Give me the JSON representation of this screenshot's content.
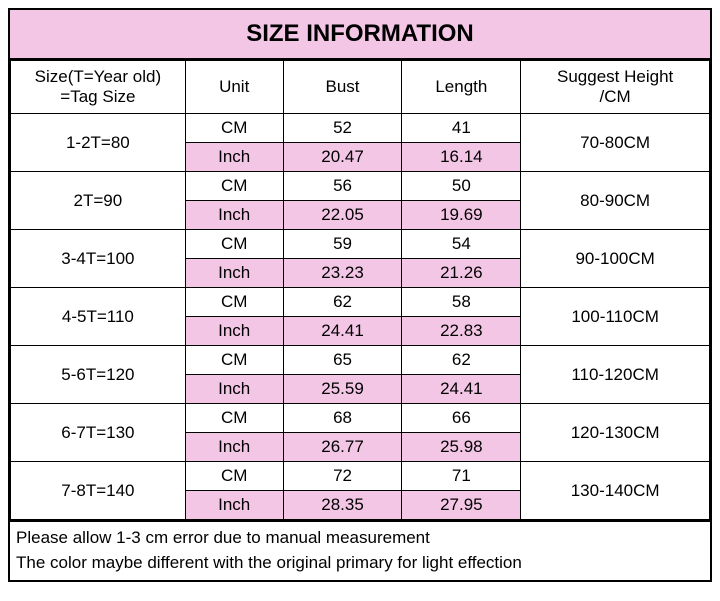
{
  "colors": {
    "title_bg": "#f4c6e6",
    "row_pink": "#f4c6e6",
    "row_white": "#ffffff",
    "border": "#000000"
  },
  "title": {
    "text": "SIZE INFORMATION",
    "fontsize": 24
  },
  "table": {
    "col_widths_pct": [
      25,
      14,
      17,
      17,
      27
    ],
    "headers": {
      "size_line1": "Size(T=Year old)",
      "size_line2": "=Tag Size",
      "unit": "Unit",
      "bust": "Bust",
      "length": "Length",
      "suggest_line1": "Suggest Height",
      "suggest_line2": "/CM"
    },
    "rows": [
      {
        "size": "1-2T=80",
        "cm": {
          "bust": "52",
          "length": "41"
        },
        "inch": {
          "bust": "20.47",
          "length": "16.14"
        },
        "suggest": "70-80CM"
      },
      {
        "size": "2T=90",
        "cm": {
          "bust": "56",
          "length": "50"
        },
        "inch": {
          "bust": "22.05",
          "length": "19.69"
        },
        "suggest": "80-90CM"
      },
      {
        "size": "3-4T=100",
        "cm": {
          "bust": "59",
          "length": "54"
        },
        "inch": {
          "bust": "23.23",
          "length": "21.26"
        },
        "suggest": "90-100CM"
      },
      {
        "size": "4-5T=110",
        "cm": {
          "bust": "62",
          "length": "58"
        },
        "inch": {
          "bust": "24.41",
          "length": "22.83"
        },
        "suggest": "100-110CM"
      },
      {
        "size": "5-6T=120",
        "cm": {
          "bust": "65",
          "length": "62"
        },
        "inch": {
          "bust": "25.59",
          "length": "24.41"
        },
        "suggest": "110-120CM"
      },
      {
        "size": "6-7T=130",
        "cm": {
          "bust": "68",
          "length": "66"
        },
        "inch": {
          "bust": "26.77",
          "length": "25.98"
        },
        "suggest": "120-130CM"
      },
      {
        "size": "7-8T=140",
        "cm": {
          "bust": "72",
          "length": "71"
        },
        "inch": {
          "bust": "28.35",
          "length": "27.95"
        },
        "suggest": "130-140CM"
      }
    ],
    "unit_labels": {
      "cm": "CM",
      "inch": "Inch"
    }
  },
  "notes": {
    "line1": "Please allow 1-3 cm error due to manual measurement",
    "line2": "The color maybe different with the original primary for light effection"
  }
}
